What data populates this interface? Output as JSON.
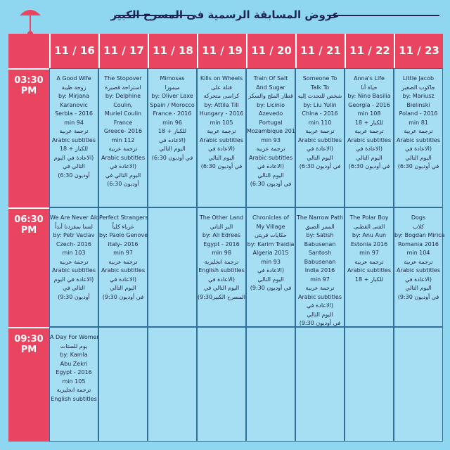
{
  "title": "عروض المسابقة الرسمية فى المسرح الكبير",
  "dates": [
    "11 / 16",
    "11 / 17",
    "11 / 18",
    "11 / 19",
    "11 / 20",
    "11 / 21",
    "11 / 22",
    "11 / 23"
  ],
  "times": [
    [
      "03:30",
      "PM"
    ],
    [
      "06:30",
      "PM"
    ],
    [
      "09:30",
      "PM"
    ]
  ],
  "rows": [
    [
      [
        "A Good Wife",
        "زوجة طيبة",
        "by: Mirjana",
        "Karanovic",
        "Serbia - 2016",
        "min 94",
        "ترجمة عربية",
        "Arabic subtitles",
        "للكبار + 18",
        "(الاعادة في اليوم",
        "التالي في",
        "أوديون 6:30)"
      ],
      [
        "The Stopover",
        "استراحة قصيرة",
        "by: Delphine",
        "Coulin,",
        "Muriel Coulin",
        "France",
        "Greece- 2016",
        "min 112",
        "ترجمة عربية",
        "Arabic subtitles",
        "(الاعادة في",
        "اليوم التالي في",
        "أوديون 6:30)"
      ],
      [
        "Mimosas",
        "ميموزا",
        "by: Oliver Laxe",
        "Spain / Morocco",
        "France - 2016",
        "min 96",
        "للكبار + 18",
        "(الاعادة في",
        "اليوم التالي",
        "في أوديون 6:30)"
      ],
      [
        "Kills on Wheels",
        "قتلة على",
        "كراسى متحركة",
        "by: Attila Till",
        "Hungary - 2016",
        "min 105",
        "ترجمة عربية",
        "Arabic subtitles",
        "(الاعادة في",
        "اليوم التالي",
        "في أوديون 6:30)"
      ],
      [
        "Train Of Salt",
        "And Sugar",
        "قطار الملح والسكر",
        "by: Licinio",
        "Azevedo",
        "Portugal",
        "Mozambique 2016",
        "min 93",
        "ترجمة عربية",
        "Arabic subtitles",
        "(الاعادة في",
        "اليوم التالي",
        "في أوديون 6:30)"
      ],
      [
        "Someone To",
        "Talk To",
        "شخص للتحدث إليه",
        "by: Liu Yulin",
        "China - 2016",
        "min 110",
        "ترجمة عربية",
        "Arabic subtitles",
        "(الاعادة في",
        "اليوم التالي",
        "في أوديون 6:30)"
      ],
      [
        "Anna's Life",
        "حياة أنا",
        "by: Nino Basilia",
        "Georgia - 2016",
        "min 108",
        "للكبار + 18",
        "ترجمة عربية",
        "Arabic subtitles",
        "(الاعادة في",
        "اليوم التالي",
        "في أوديون 6:30)"
      ],
      [
        "Little Jacob",
        "جاكوب الصغير",
        "by: Mariusz",
        "Bielinski",
        "Poland - 2016",
        "min 81",
        "ترجمة عربية",
        "Arabic subtitles",
        "(الاعادة في",
        "اليوم التالي",
        "في أوديون 6:30)"
      ]
    ],
    [
      [
        "We Are Never Alone",
        "لسنا بمفردنا أبداً",
        "by: Petr Vaclav",
        "Czech- 2016",
        "min 103",
        "ترجمة عربية",
        "Arabic subtitles",
        "(الاعادة في اليوم",
        "التالي في",
        "أوديون 9:30)"
      ],
      [
        "Perfect Strangers",
        "غرباء كلياً",
        "by: Paolo Genovese",
        "Italy- 2016",
        "min 97",
        "ترجمة عربية",
        "Arabic subtitles",
        "(الاعادة في",
        "اليوم التالي",
        "في أوديون 9:30)"
      ],
      [],
      [
        "The Other Land",
        "البر التاني",
        "by: Ali Edrees",
        "Egypt - 2016",
        "min 98",
        "ترجمة انجليزية",
        "English subtitles",
        "(الاعادة في",
        "اليوم التالي في",
        "المسرح الكبير9:30)"
      ],
      [
        "Chronicles of",
        "My Village",
        "حكايات قريتى",
        "by: Karim Traidia",
        "Algeria 2015",
        "min 93",
        "(الاعادة في",
        "اليوم التالي",
        "في أوديون 9:30)"
      ],
      [
        "The Narrow Path",
        "الممر الضيق",
        "by: Satish",
        "Babusenan",
        "Santosh",
        "Babusenan",
        "India 2016",
        "min 97",
        "ترجمة عربية",
        "Arabic subtitles",
        "(الاعادة في",
        "اليوم التالي",
        "في أوديون 9:30)"
      ],
      [
        "The Polar Boy",
        "الفتى القطبى",
        "by: Anu Aun",
        "Estonia 2016",
        "min 97",
        "ترجمة عربية",
        "Arabic subtitles",
        "للكبار + 18"
      ],
      [
        "Dogs",
        "كلاب",
        "by: Bogdan Mirica",
        "Romania 2016",
        "min 104",
        "ترجمة عربية",
        "Arabic subtitles",
        "(الاعادة في",
        "اليوم التالي",
        "في أوديون 9:30)"
      ]
    ],
    [
      [
        "A Day For Women",
        "يوم للستات",
        "by: Kamla",
        "Abu Zekri",
        "Egypt - 2016",
        "min 105",
        "ترجمة انجليزية",
        "English subtitles"
      ],
      [],
      [],
      [],
      [],
      [],
      [],
      []
    ]
  ]
}
